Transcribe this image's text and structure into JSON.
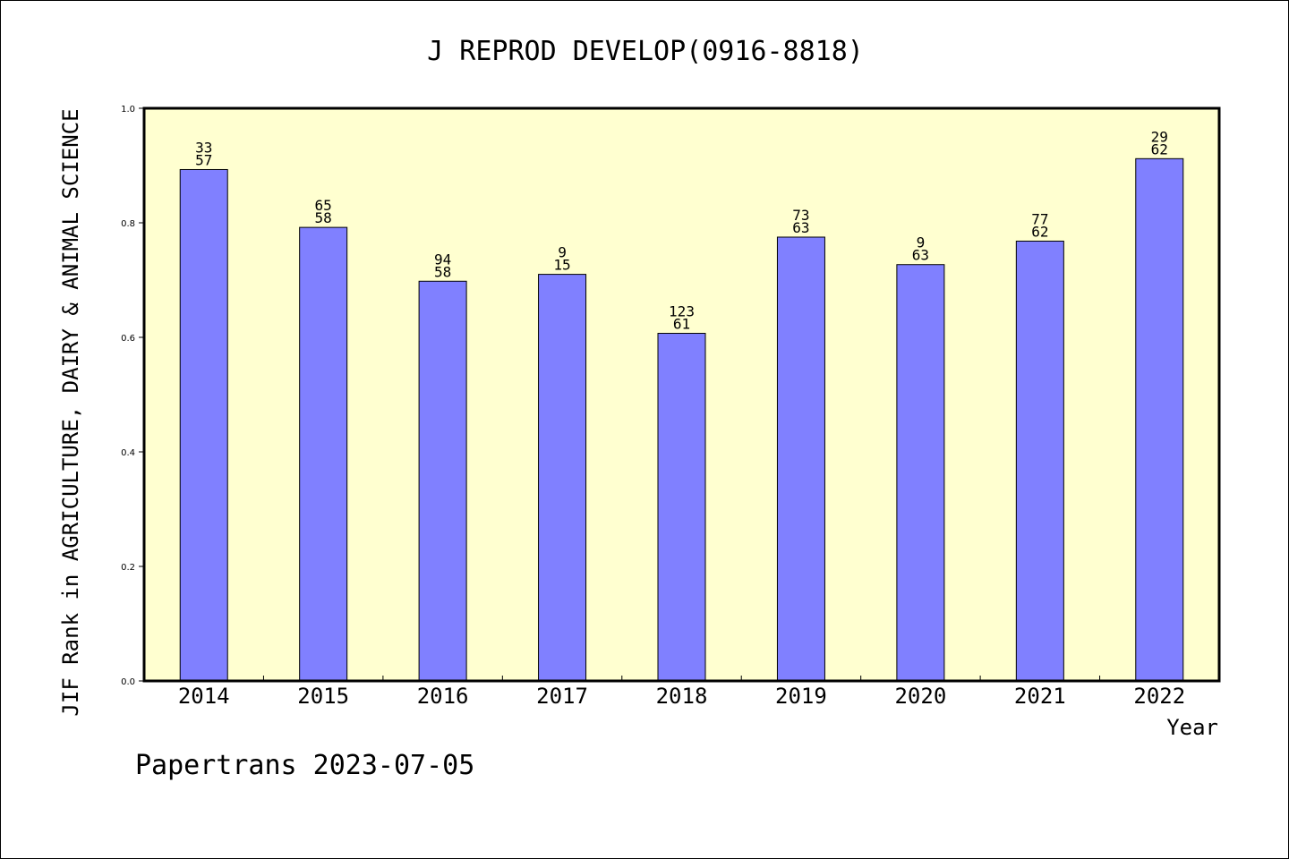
{
  "chart_data": {
    "type": "bar",
    "title": "J REPROD DEVELOP(0916-8818)",
    "xlabel": "Year",
    "ylabel": "JIF Rank in AGRICULTURE, DAIRY & ANIMAL SCIENCE",
    "ylim": [
      0,
      1.0
    ],
    "yticks": [
      "0.0",
      "0.2",
      "0.4",
      "0.6",
      "0.8",
      "1.0"
    ],
    "categories": [
      "2014",
      "2015",
      "2016",
      "2017",
      "2018",
      "2019",
      "2020",
      "2021",
      "2022"
    ],
    "values": [
      0.893,
      0.792,
      0.698,
      0.71,
      0.607,
      0.775,
      0.727,
      0.768,
      0.912
    ],
    "labels_top": [
      "33",
      "65",
      "94",
      "9",
      "123",
      "73",
      "9",
      "77",
      "29"
    ],
    "labels_bottom": [
      "57",
      "58",
      "58",
      "15",
      "61",
      "63",
      "63",
      "62",
      "62"
    ],
    "grid": false,
    "legend": "none",
    "colors": {
      "bar": "#8080ff",
      "plot_background": "#ffffd0"
    }
  },
  "footer": {
    "text": "Papertrans 2023-07-05"
  }
}
